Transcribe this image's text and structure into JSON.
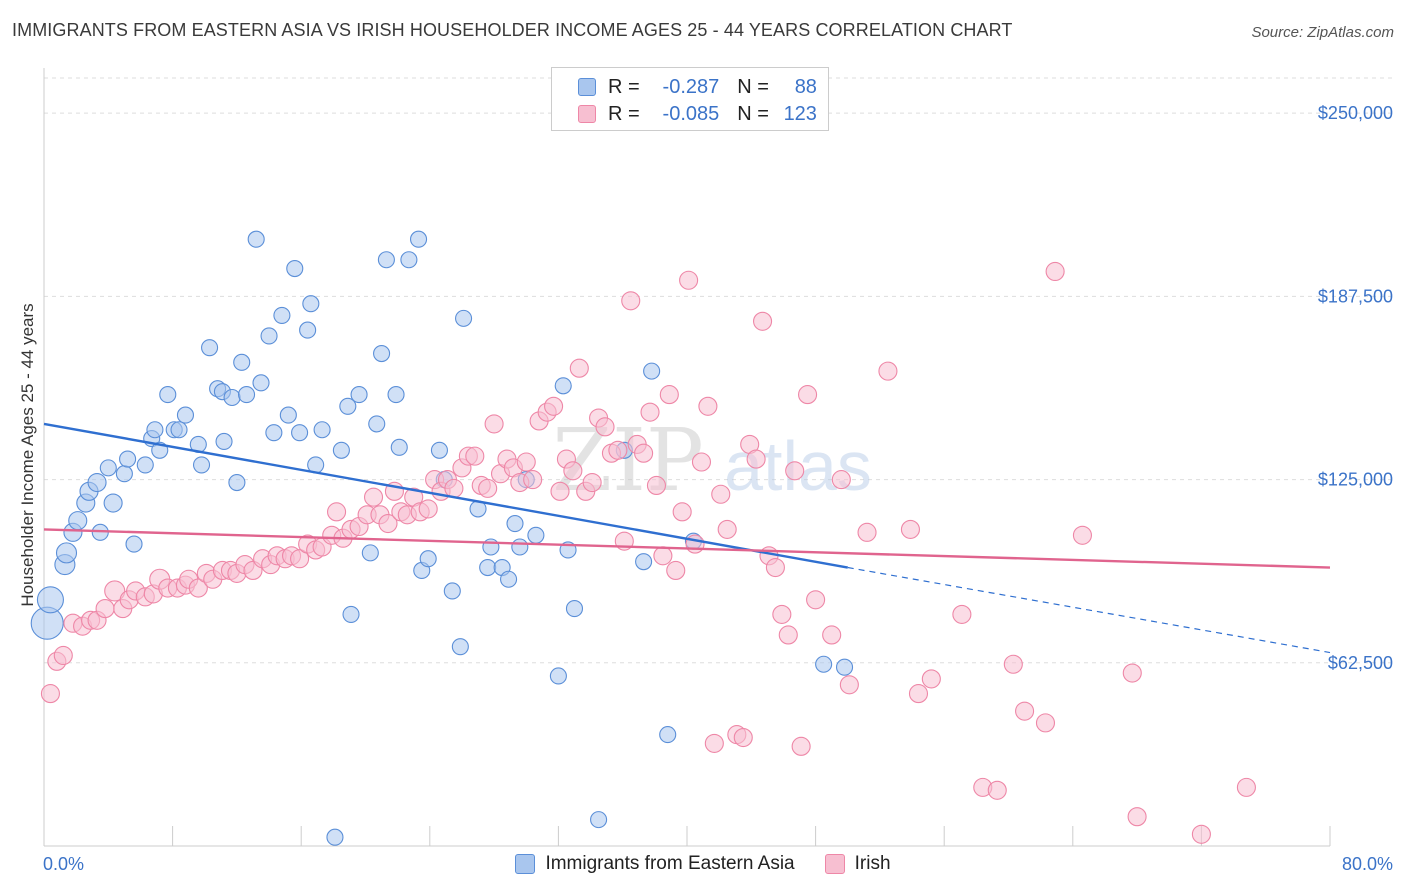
{
  "header": {
    "title": "IMMIGRANTS FROM EASTERN ASIA VS IRISH HOUSEHOLDER INCOME AGES 25 - 44 YEARS CORRELATION CHART",
    "source": "Source: ZipAtlas.com"
  },
  "watermark": {
    "zip": "ZIP",
    "atlas": "atlas"
  },
  "legend": {
    "rows": [
      {
        "r_label": "R =",
        "r_value": "-0.287",
        "n_label": "N =",
        "n_value": "88",
        "color": "#5b8fd8"
      },
      {
        "r_label": "R =",
        "r_value": "-0.085",
        "n_label": "N =",
        "n_value": "123",
        "color": "#ee87a7"
      }
    ]
  },
  "bottom_legend": {
    "series1": "Immigrants from Eastern Asia",
    "series2": "Irish"
  },
  "chart_data": {
    "type": "scatter",
    "xlabel": "",
    "ylabel": "Householder Income Ages 25 - 44 years",
    "xlim": [
      0,
      80
    ],
    "ylim": [
      0,
      262000
    ],
    "x_tick_labels": [
      "0.0%",
      "80.0%"
    ],
    "y_ticks": [
      62500,
      125000,
      187500,
      250000
    ],
    "y_tick_labels": [
      "$62,500",
      "$125,000",
      "$187,500",
      "$250,000"
    ],
    "grid": true,
    "series": [
      {
        "name": "Immigrants from Eastern Asia",
        "color": "#5b8fd8",
        "fill": "#a9c6ee",
        "trend": {
          "x": [
            0,
            50
          ],
          "y": [
            144000,
            95000
          ],
          "dashed_to": [
            80,
            66000
          ]
        },
        "points": [
          [
            0.2,
            76000,
            16
          ],
          [
            0.4,
            84000,
            13
          ],
          [
            1.3,
            96000,
            10
          ],
          [
            1.4,
            100000,
            10
          ],
          [
            1.8,
            107000,
            9
          ],
          [
            2.1,
            111000,
            9
          ],
          [
            2.6,
            117000,
            9
          ],
          [
            2.8,
            121000,
            9
          ],
          [
            3.3,
            124000,
            9
          ],
          [
            4.3,
            117000,
            9
          ],
          [
            3.5,
            107000,
            8
          ],
          [
            4.0,
            129000,
            8
          ],
          [
            5.0,
            127000,
            8
          ],
          [
            5.2,
            132000,
            8
          ],
          [
            5.6,
            103000,
            8
          ],
          [
            6.3,
            130000,
            8
          ],
          [
            6.7,
            139000,
            8
          ],
          [
            6.9,
            142000,
            8
          ],
          [
            7.2,
            135000,
            8
          ],
          [
            7.7,
            154000,
            8
          ],
          [
            8.1,
            142000,
            8
          ],
          [
            8.4,
            142000,
            8
          ],
          [
            8.8,
            147000,
            8
          ],
          [
            9.6,
            137000,
            8
          ],
          [
            9.8,
            130000,
            8
          ],
          [
            10.3,
            170000,
            8
          ],
          [
            10.8,
            156000,
            8
          ],
          [
            11.1,
            155000,
            8
          ],
          [
            11.2,
            138000,
            8
          ],
          [
            11.7,
            153000,
            8
          ],
          [
            12.0,
            124000,
            8
          ],
          [
            12.3,
            165000,
            8
          ],
          [
            12.6,
            154000,
            8
          ],
          [
            13.2,
            207000,
            8
          ],
          [
            13.5,
            158000,
            8
          ],
          [
            14.0,
            174000,
            8
          ],
          [
            14.3,
            141000,
            8
          ],
          [
            14.8,
            181000,
            8
          ],
          [
            15.2,
            147000,
            8
          ],
          [
            15.6,
            197000,
            8
          ],
          [
            15.9,
            141000,
            8
          ],
          [
            16.4,
            176000,
            8
          ],
          [
            16.6,
            185000,
            8
          ],
          [
            16.9,
            130000,
            8
          ],
          [
            17.3,
            142000,
            8
          ],
          [
            18.1,
            3000,
            8
          ],
          [
            18.5,
            135000,
            8
          ],
          [
            18.9,
            150000,
            8
          ],
          [
            19.1,
            79000,
            8
          ],
          [
            19.6,
            154000,
            8
          ],
          [
            20.3,
            100000,
            8
          ],
          [
            20.7,
            144000,
            8
          ],
          [
            21.0,
            168000,
            8
          ],
          [
            21.3,
            200000,
            8
          ],
          [
            21.9,
            154000,
            8
          ],
          [
            22.1,
            136000,
            8
          ],
          [
            22.7,
            200000,
            8
          ],
          [
            23.3,
            207000,
            8
          ],
          [
            23.5,
            94000,
            8
          ],
          [
            23.9,
            98000,
            8
          ],
          [
            24.6,
            135000,
            8
          ],
          [
            24.9,
            125000,
            8
          ],
          [
            25.4,
            87000,
            8
          ],
          [
            25.9,
            68000,
            8
          ],
          [
            26.1,
            180000,
            8
          ],
          [
            27.0,
            115000,
            8
          ],
          [
            27.6,
            95000,
            8
          ],
          [
            27.8,
            102000,
            8
          ],
          [
            28.5,
            95000,
            8
          ],
          [
            28.9,
            91000,
            8
          ],
          [
            29.3,
            110000,
            8
          ],
          [
            29.6,
            102000,
            8
          ],
          [
            30.0,
            125000,
            8
          ],
          [
            30.6,
            106000,
            8
          ],
          [
            32.0,
            58000,
            8
          ],
          [
            32.3,
            157000,
            8
          ],
          [
            32.6,
            101000,
            8
          ],
          [
            33.0,
            81000,
            8
          ],
          [
            34.5,
            9000,
            8
          ],
          [
            36.1,
            135000,
            8
          ],
          [
            37.3,
            97000,
            8
          ],
          [
            37.8,
            162000,
            8
          ],
          [
            38.8,
            38000,
            8
          ],
          [
            40.4,
            104000,
            8
          ],
          [
            48.5,
            62000,
            8
          ],
          [
            49.8,
            61000,
            8
          ]
        ]
      },
      {
        "name": "Irish",
        "color": "#ee87a7",
        "fill": "#f7bfd1",
        "trend": {
          "x": [
            0,
            80
          ],
          "y": [
            108000,
            95000
          ]
        },
        "points": [
          [
            0.4,
            52000,
            9
          ],
          [
            0.8,
            63000,
            9
          ],
          [
            1.2,
            65000,
            9
          ],
          [
            1.8,
            76000,
            9
          ],
          [
            2.4,
            75000,
            9
          ],
          [
            2.9,
            77000,
            9
          ],
          [
            3.3,
            77000,
            9
          ],
          [
            3.8,
            81000,
            9
          ],
          [
            4.4,
            87000,
            10
          ],
          [
            4.9,
            81000,
            9
          ],
          [
            5.3,
            84000,
            9
          ],
          [
            5.7,
            87000,
            9
          ],
          [
            6.3,
            85000,
            9
          ],
          [
            6.8,
            86000,
            9
          ],
          [
            7.2,
            91000,
            10
          ],
          [
            7.7,
            88000,
            9
          ],
          [
            8.3,
            88000,
            9
          ],
          [
            8.8,
            89000,
            9
          ],
          [
            9.0,
            91000,
            9
          ],
          [
            9.6,
            88000,
            9
          ],
          [
            10.1,
            93000,
            9
          ],
          [
            10.5,
            91000,
            9
          ],
          [
            11.1,
            94000,
            9
          ],
          [
            11.6,
            94000,
            9
          ],
          [
            12.0,
            93000,
            9
          ],
          [
            12.5,
            96000,
            9
          ],
          [
            13.0,
            94000,
            9
          ],
          [
            13.6,
            98000,
            9
          ],
          [
            14.1,
            96000,
            9
          ],
          [
            14.5,
            99000,
            9
          ],
          [
            15.0,
            98000,
            9
          ],
          [
            15.4,
            99000,
            9
          ],
          [
            15.9,
            98000,
            9
          ],
          [
            16.4,
            103000,
            9
          ],
          [
            16.9,
            101000,
            9
          ],
          [
            17.3,
            102000,
            9
          ],
          [
            17.9,
            106000,
            9
          ],
          [
            18.2,
            114000,
            9
          ],
          [
            18.6,
            105000,
            9
          ],
          [
            19.1,
            108000,
            9
          ],
          [
            19.6,
            109000,
            9
          ],
          [
            20.1,
            113000,
            9
          ],
          [
            20.5,
            119000,
            9
          ],
          [
            20.9,
            113000,
            9
          ],
          [
            21.4,
            110000,
            9
          ],
          [
            21.8,
            121000,
            9
          ],
          [
            22.2,
            114000,
            9
          ],
          [
            22.6,
            113000,
            9
          ],
          [
            23.0,
            119000,
            9
          ],
          [
            23.4,
            114000,
            9
          ],
          [
            23.9,
            115000,
            9
          ],
          [
            24.3,
            125000,
            9
          ],
          [
            24.7,
            121000,
            9
          ],
          [
            25.1,
            125000,
            9
          ],
          [
            25.5,
            122000,
            9
          ],
          [
            26.0,
            129000,
            9
          ],
          [
            26.4,
            133000,
            9
          ],
          [
            26.8,
            133000,
            9
          ],
          [
            27.2,
            123000,
            9
          ],
          [
            27.6,
            122000,
            9
          ],
          [
            28.0,
            144000,
            9
          ],
          [
            28.4,
            127000,
            9
          ],
          [
            28.8,
            132000,
            9
          ],
          [
            29.2,
            129000,
            9
          ],
          [
            29.6,
            124000,
            9
          ],
          [
            30.0,
            131000,
            9
          ],
          [
            30.4,
            125000,
            9
          ],
          [
            30.8,
            145000,
            9
          ],
          [
            31.3,
            148000,
            9
          ],
          [
            31.7,
            150000,
            9
          ],
          [
            32.1,
            121000,
            9
          ],
          [
            32.5,
            132000,
            9
          ],
          [
            32.9,
            128000,
            9
          ],
          [
            33.3,
            163000,
            9
          ],
          [
            33.7,
            121000,
            9
          ],
          [
            34.1,
            124000,
            9
          ],
          [
            34.5,
            146000,
            9
          ],
          [
            34.9,
            143000,
            9
          ],
          [
            35.3,
            134000,
            9
          ],
          [
            35.7,
            135000,
            9
          ],
          [
            36.1,
            104000,
            9
          ],
          [
            36.5,
            186000,
            9
          ],
          [
            36.9,
            137000,
            9
          ],
          [
            37.3,
            134000,
            9
          ],
          [
            37.7,
            148000,
            9
          ],
          [
            38.1,
            123000,
            9
          ],
          [
            38.5,
            99000,
            9
          ],
          [
            38.9,
            154000,
            9
          ],
          [
            39.3,
            94000,
            9
          ],
          [
            39.7,
            114000,
            9
          ],
          [
            40.1,
            193000,
            9
          ],
          [
            40.5,
            103000,
            9
          ],
          [
            40.9,
            131000,
            9
          ],
          [
            41.3,
            150000,
            9
          ],
          [
            41.7,
            35000,
            9
          ],
          [
            42.1,
            120000,
            9
          ],
          [
            42.5,
            108000,
            9
          ],
          [
            43.1,
            38000,
            9
          ],
          [
            43.5,
            37000,
            9
          ],
          [
            43.9,
            137000,
            9
          ],
          [
            44.3,
            132000,
            9
          ],
          [
            44.7,
            179000,
            9
          ],
          [
            45.1,
            99000,
            9
          ],
          [
            45.5,
            95000,
            9
          ],
          [
            45.9,
            79000,
            9
          ],
          [
            46.3,
            72000,
            9
          ],
          [
            46.7,
            128000,
            9
          ],
          [
            47.1,
            34000,
            9
          ],
          [
            47.5,
            154000,
            9
          ],
          [
            48.0,
            84000,
            9
          ],
          [
            49.0,
            72000,
            9
          ],
          [
            49.6,
            125000,
            9
          ],
          [
            50.1,
            55000,
            9
          ],
          [
            51.2,
            107000,
            9
          ],
          [
            52.5,
            162000,
            9
          ],
          [
            53.9,
            108000,
            9
          ],
          [
            54.4,
            52000,
            9
          ],
          [
            55.2,
            57000,
            9
          ],
          [
            57.1,
            79000,
            9
          ],
          [
            58.4,
            20000,
            9
          ],
          [
            59.3,
            19000,
            9
          ],
          [
            60.3,
            62000,
            9
          ],
          [
            61.0,
            46000,
            9
          ],
          [
            62.3,
            42000,
            9
          ],
          [
            62.9,
            196000,
            9
          ],
          [
            64.6,
            106000,
            9
          ],
          [
            67.7,
            59000,
            9
          ],
          [
            68.0,
            10000,
            9
          ],
          [
            72.0,
            4000,
            9
          ],
          [
            74.8,
            20000,
            9
          ]
        ]
      }
    ]
  }
}
